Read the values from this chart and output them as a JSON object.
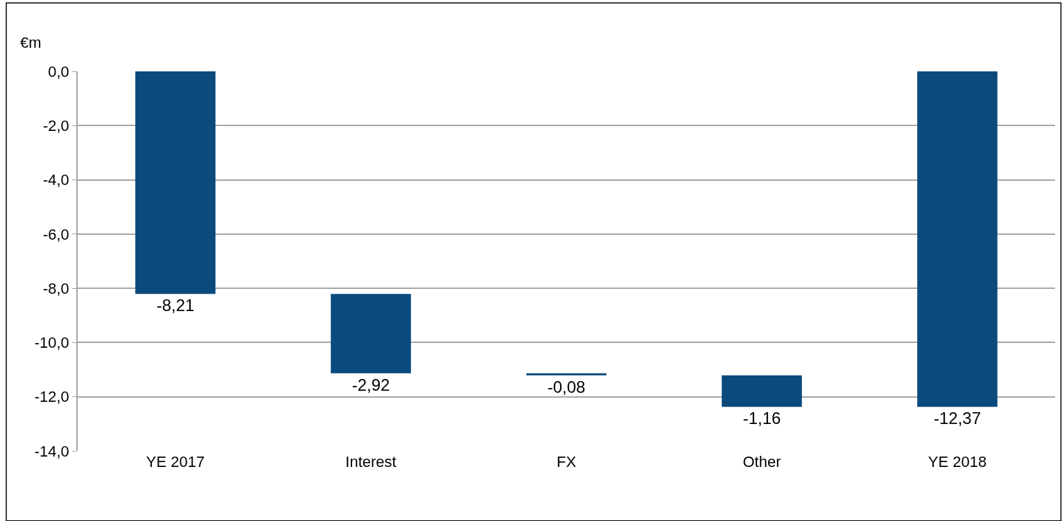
{
  "chart_data": {
    "type": "bar",
    "ylabel": "€m",
    "categories": [
      "YE 2017",
      "Interest",
      "FX",
      "Other",
      "YE 2018"
    ],
    "values": [
      -8.21,
      -2.92,
      -0.08,
      -1.16,
      -12.37
    ],
    "base": [
      0,
      -8.21,
      -11.13,
      -11.21,
      0
    ],
    "value_labels": [
      "-8,21",
      "-2,92",
      "-0,08",
      "-1,16",
      "-12,37"
    ],
    "color": "#0b4a7d",
    "ylim": [
      -14,
      0
    ],
    "yticks": [
      {
        "value": 0,
        "label": "0,0"
      },
      {
        "value": -2,
        "label": "-2,0"
      },
      {
        "value": -4,
        "label": "-4,0"
      },
      {
        "value": -6,
        "label": "-6,0"
      },
      {
        "value": -8,
        "label": "-8,0"
      },
      {
        "value": -10,
        "label": "-10,0"
      },
      {
        "value": -12,
        "label": "-12,0"
      },
      {
        "value": -14,
        "label": "-14,0"
      }
    ],
    "grid": "y",
    "legend": false
  }
}
